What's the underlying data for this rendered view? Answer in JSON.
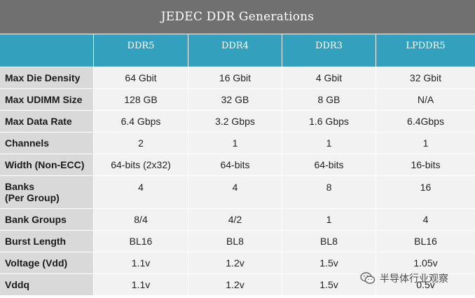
{
  "title": "JEDEC DDR Generations",
  "columns": [
    "DDR5",
    "DDR4",
    "DDR3",
    "LPDDR5"
  ],
  "rows": [
    {
      "label": "Max Die Density",
      "values": [
        "64 Gbit",
        "16 Gbit",
        "4 Gbit",
        "32 Gbit"
      ]
    },
    {
      "label": "Max UDIMM Size",
      "values": [
        "128 GB",
        "32 GB",
        "8 GB",
        "N/A"
      ]
    },
    {
      "label": "Max Data Rate",
      "values": [
        "6.4 Gbps",
        "3.2 Gbps",
        "1.6 Gbps",
        "6.4Gbps"
      ]
    },
    {
      "label": "Channels",
      "values": [
        "2",
        "1",
        "1",
        "1"
      ]
    },
    {
      "label": "Width (Non-ECC)",
      "values": [
        "64-bits (2x32)",
        "64-bits",
        "64-bits",
        "16-bits"
      ]
    },
    {
      "label": "Banks",
      "label2": "(Per Group)",
      "values": [
        "4",
        "4",
        "8",
        "16"
      ]
    },
    {
      "label": "Bank Groups",
      "values": [
        "8/4",
        "4/2",
        "1",
        "4"
      ]
    },
    {
      "label": "Burst Length",
      "values": [
        "BL16",
        "BL8",
        "BL8",
        "BL16"
      ]
    },
    {
      "label": "Voltage (Vdd)",
      "values": [
        "1.1v",
        "1.2v",
        "1.5v",
        "1.05v"
      ]
    },
    {
      "label": "Vddq",
      "values": [
        "1.1v",
        "1.2v",
        "1.5v",
        "0.5v"
      ]
    }
  ],
  "watermark": {
    "text": "半导体行业观察",
    "icon": "wechat-icon"
  }
}
